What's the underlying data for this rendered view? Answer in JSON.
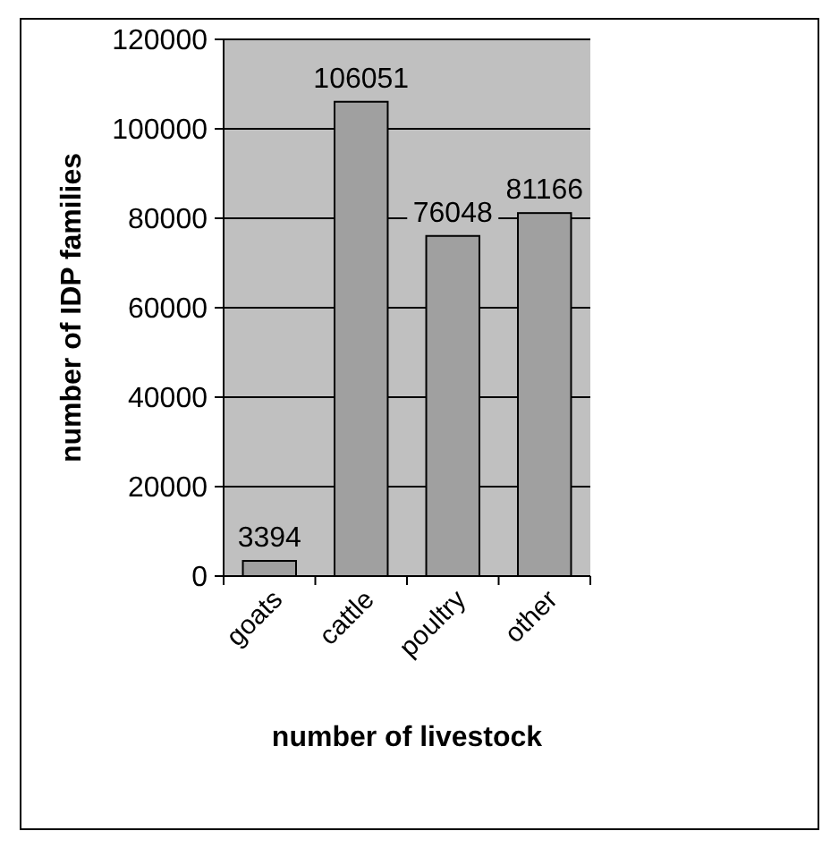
{
  "chart_data": {
    "type": "bar",
    "xlabel": "number of livestock",
    "ylabel": "number of IDP families",
    "categories": [
      "goats",
      "cattle",
      "poultry",
      "other"
    ],
    "values": [
      3394,
      106051,
      76048,
      81166
    ],
    "color": "#a0a0a0",
    "ylim": [
      0,
      120000
    ],
    "yticks": [
      0,
      20000,
      40000,
      60000,
      80000,
      100000,
      120000
    ],
    "grid": "y",
    "data_labels": true
  }
}
